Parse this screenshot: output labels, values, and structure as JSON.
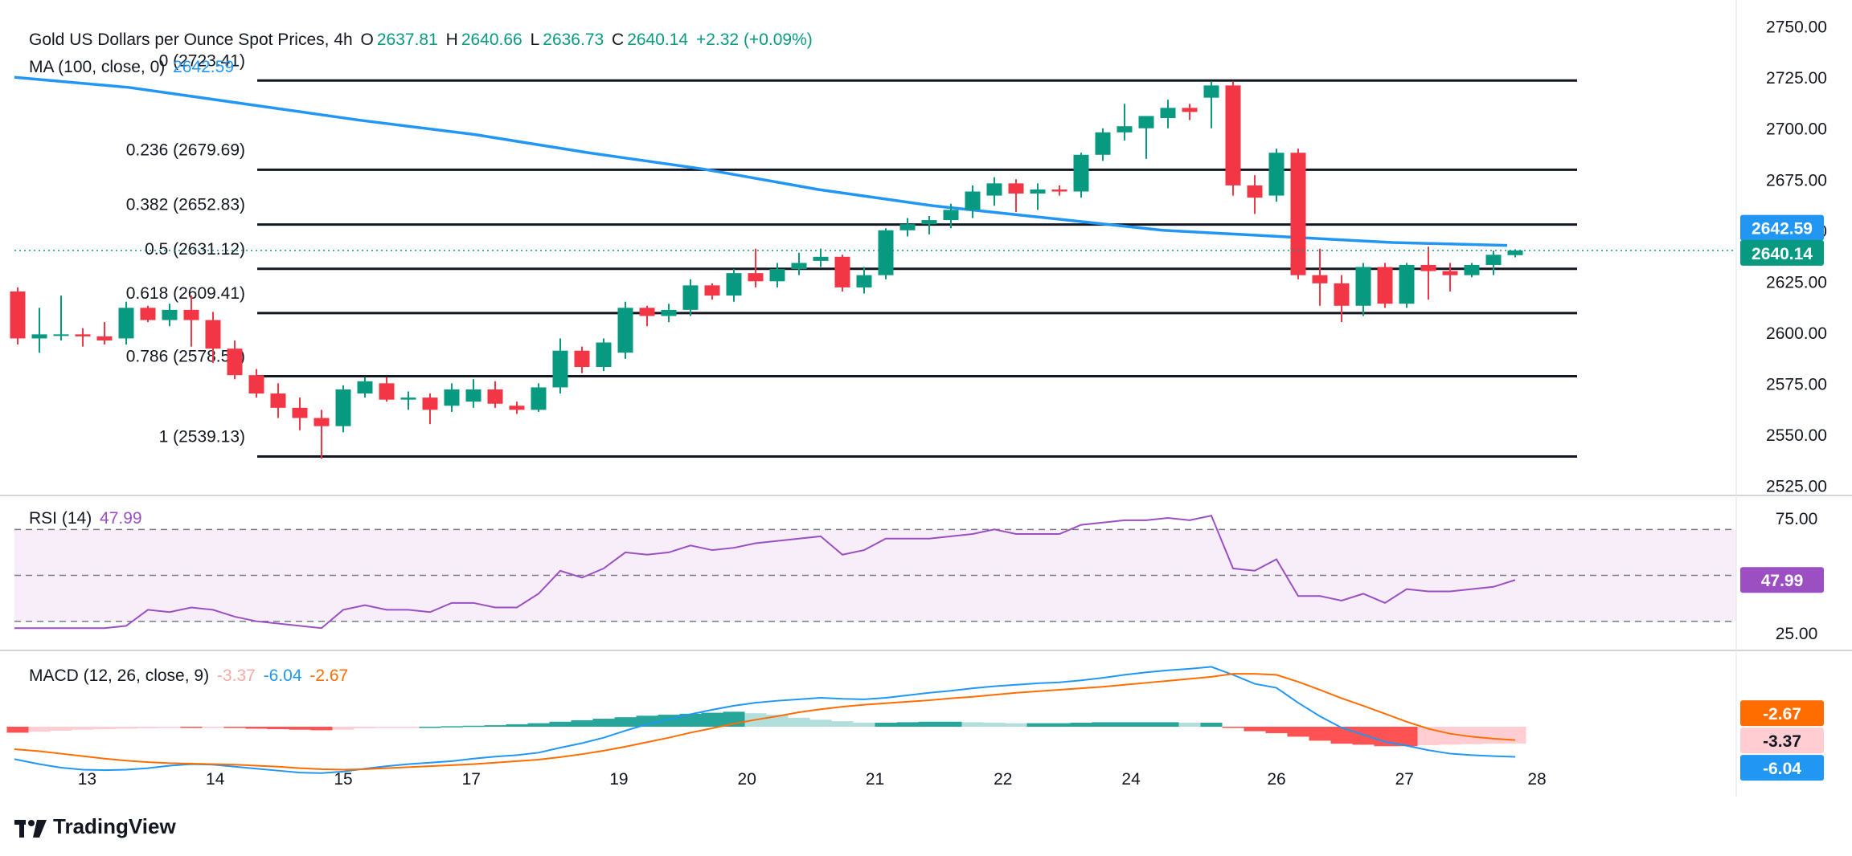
{
  "header": {
    "symbol": "Gold US Dollars per Ounce Spot Prices, 4h",
    "open_label": "O",
    "open": "2637.81",
    "high_label": "H",
    "high": "2640.66",
    "low_label": "L",
    "low": "2636.73",
    "close_label": "C",
    "close": "2640.14",
    "change": "+2.32 (+0.09%)"
  },
  "ma_legend": {
    "label": "MA (100, close, 0)",
    "value": "2642.59"
  },
  "rsi_legend": {
    "label": "RSI (14)",
    "value": "47.99"
  },
  "macd_legend": {
    "label": "MACD (12, 26, close, 9)",
    "hist": "-3.37",
    "macd": "-6.04",
    "signal": "-2.67"
  },
  "branding": {
    "name": "TradingView"
  },
  "colors": {
    "up": "#26a69a",
    "up_dark": "#089981",
    "down": "#f23645",
    "ma": "#2196f3",
    "rsi": "#9c4fc2",
    "macd": "#2196f3",
    "signal": "#ff6d00",
    "fib": "#131722"
  },
  "chart_data": [
    {
      "type": "candlestick",
      "title": "Gold US Dollars per Ounce Spot Prices, 4h",
      "x_tick_labels": [
        "13",
        "14",
        "15",
        "17",
        "19",
        "20",
        "21",
        "22",
        "24",
        "26",
        "27",
        "28"
      ],
      "price_axis_ticks": [
        2525,
        2550,
        2575,
        2600,
        2625,
        2650,
        2675,
        2700,
        2725,
        2750
      ],
      "ylim": [
        2522,
        2755
      ],
      "last_price": 2640.14,
      "ma_last": 2642.59,
      "fibonacci": [
        {
          "ratio": "0",
          "price": 2723.41,
          "label": "0 (2723.41)"
        },
        {
          "ratio": "0.236",
          "price": 2679.69,
          "label": "0.236 (2679.69)"
        },
        {
          "ratio": "0.382",
          "price": 2652.83,
          "label": "0.382 (2652.83)"
        },
        {
          "ratio": "0.5",
          "price": 2631.12,
          "label": "0.5 (2631.12)"
        },
        {
          "ratio": "0.618",
          "price": 2609.41,
          "label": "0.618 (2609.41)"
        },
        {
          "ratio": "0.786",
          "price": 2578.5,
          "label": "0.786 (2578.50)"
        },
        {
          "ratio": "1",
          "price": 2539.13,
          "label": "1 (2539.13)"
        }
      ],
      "candles": [
        [
          2620,
          2622,
          2594,
          2597
        ],
        [
          2597,
          2612,
          2590,
          2599
        ],
        [
          2599,
          2618,
          2596,
          2599
        ],
        [
          2599,
          2602,
          2593,
          2598
        ],
        [
          2598,
          2605,
          2594,
          2596
        ],
        [
          2597,
          2615,
          2594,
          2612
        ],
        [
          2612,
          2613,
          2605,
          2606
        ],
        [
          2606,
          2614,
          2603,
          2611
        ],
        [
          2611,
          2618,
          2593,
          2606
        ],
        [
          2606,
          2610,
          2585,
          2592
        ],
        [
          2592,
          2596,
          2577,
          2579
        ],
        [
          2579,
          2582,
          2568,
          2570
        ],
        [
          2570,
          2575,
          2558,
          2563
        ],
        [
          2563,
          2568,
          2552,
          2558
        ],
        [
          2558,
          2562,
          2538,
          2554
        ],
        [
          2554,
          2574,
          2551,
          2572
        ],
        [
          2570,
          2578,
          2568,
          2576
        ],
        [
          2575,
          2578,
          2566,
          2567
        ],
        [
          2567,
          2571,
          2562,
          2568
        ],
        [
          2568,
          2570,
          2555,
          2562
        ],
        [
          2564,
          2575,
          2561,
          2572
        ],
        [
          2566,
          2577,
          2563,
          2572
        ],
        [
          2572,
          2576,
          2563,
          2565
        ],
        [
          2564,
          2566,
          2560,
          2562
        ],
        [
          2562,
          2575,
          2561,
          2573
        ],
        [
          2573,
          2597,
          2570,
          2591
        ],
        [
          2591,
          2593,
          2580,
          2583
        ],
        [
          2583,
          2597,
          2581,
          2595
        ],
        [
          2590,
          2615,
          2587,
          2612
        ],
        [
          2612,
          2613,
          2603,
          2608
        ],
        [
          2608,
          2614,
          2605,
          2611
        ],
        [
          2611,
          2626,
          2608,
          2623
        ],
        [
          2623,
          2624,
          2616,
          2618
        ],
        [
          2618,
          2631,
          2615,
          2629
        ],
        [
          2629,
          2641,
          2622,
          2625
        ],
        [
          2625,
          2634,
          2622,
          2631
        ],
        [
          2631,
          2639,
          2628,
          2634
        ],
        [
          2635,
          2641,
          2632,
          2637
        ],
        [
          2637,
          2638,
          2620,
          2622
        ],
        [
          2622,
          2632,
          2619,
          2628
        ],
        [
          2628,
          2651,
          2626,
          2650
        ],
        [
          2650,
          2656,
          2647,
          2653
        ],
        [
          2653,
          2657,
          2648,
          2655
        ],
        [
          2655,
          2663,
          2651,
          2660
        ],
        [
          2660,
          2672,
          2656,
          2669
        ],
        [
          2667,
          2676,
          2662,
          2673
        ],
        [
          2673,
          2675,
          2659,
          2668
        ],
        [
          2668,
          2673,
          2660,
          2670
        ],
        [
          2670,
          2672,
          2667,
          2669
        ],
        [
          2669,
          2688,
          2666,
          2687
        ],
        [
          2687,
          2700,
          2684,
          2698
        ],
        [
          2698,
          2712,
          2694,
          2701
        ],
        [
          2700,
          2706,
          2685,
          2706
        ],
        [
          2705,
          2714,
          2700,
          2710
        ],
        [
          2710,
          2712,
          2704,
          2708
        ],
        [
          2715,
          2723,
          2700,
          2721
        ],
        [
          2721,
          2723,
          2667,
          2672
        ],
        [
          2672,
          2677,
          2658,
          2666
        ],
        [
          2667,
          2690,
          2664,
          2688
        ],
        [
          2688,
          2690,
          2626,
          2628
        ],
        [
          2628,
          2641,
          2613,
          2624
        ],
        [
          2624,
          2628,
          2605,
          2613
        ],
        [
          2613,
          2634,
          2608,
          2632
        ],
        [
          2632,
          2634,
          2612,
          2614
        ],
        [
          2614,
          2634,
          2612,
          2633
        ],
        [
          2633,
          2642,
          2616,
          2630
        ],
        [
          2630,
          2634,
          2620,
          2628
        ],
        [
          2628,
          2634,
          2627,
          2633
        ],
        [
          2633,
          2640,
          2628,
          2638
        ],
        [
          2637.81,
          2640.66,
          2636.73,
          2640.14
        ]
      ],
      "moving_average": [
        2725,
        2720,
        2712,
        2704,
        2697,
        2688,
        2680,
        2670,
        2662,
        2656,
        2650,
        2647,
        2644,
        2642.59
      ]
    },
    {
      "type": "line",
      "name": "RSI (14)",
      "ylim": [
        18,
        82
      ],
      "reference_lines": [
        70,
        50,
        30
      ],
      "y_ticks": [
        25,
        75
      ],
      "values": [
        27,
        27,
        27,
        27,
        27,
        28,
        35,
        34,
        36,
        35,
        32,
        30,
        29,
        28,
        27,
        35,
        37,
        35,
        35,
        34,
        38,
        38,
        36,
        36,
        42,
        52,
        49,
        53,
        60,
        59,
        60,
        63,
        61,
        62,
        64,
        65,
        66,
        67,
        59,
        61,
        66,
        66,
        66,
        67,
        68,
        70,
        68,
        68,
        68,
        72,
        73,
        74,
        74,
        75,
        74,
        76,
        53,
        52,
        57,
        41,
        41,
        39,
        42,
        38,
        44,
        43,
        43,
        44,
        45,
        47.99
      ]
    },
    {
      "type": "bar+line",
      "name": "MACD (12, 26, close, 9)",
      "ylim": [
        -14,
        14
      ],
      "histogram": [
        -1.2,
        -1.0,
        -0.8,
        -0.6,
        -0.5,
        -0.4,
        -0.3,
        -0.2,
        -0.2,
        -0.1,
        -0.2,
        -0.4,
        -0.5,
        -0.6,
        -0.7,
        -0.6,
        -0.3,
        -0.2,
        -0.1,
        0.0,
        0.1,
        0.2,
        0.3,
        0.5,
        0.7,
        1.0,
        1.3,
        1.6,
        1.9,
        2.2,
        2.4,
        2.6,
        2.8,
        3.0,
        2.7,
        2.4,
        1.8,
        1.4,
        1.1,
        0.8,
        0.8,
        0.9,
        1.0,
        1.0,
        0.9,
        0.8,
        0.7,
        0.7,
        0.7,
        0.8,
        0.9,
        0.9,
        0.9,
        0.9,
        0.8,
        0.8,
        -0.2,
        -0.9,
        -1.3,
        -2.0,
        -2.8,
        -3.4,
        -3.6,
        -3.9,
        -3.9,
        -3.7,
        -3.6,
        -3.5,
        -3.4,
        -3.37
      ],
      "macd": [
        -6.5,
        -7.5,
        -8.2,
        -8.6,
        -8.7,
        -8.6,
        -8.3,
        -7.8,
        -7.5,
        -7.6,
        -8.0,
        -8.4,
        -8.8,
        -9.2,
        -9.3,
        -9.0,
        -8.4,
        -7.9,
        -7.5,
        -7.2,
        -6.9,
        -6.4,
        -6.0,
        -5.7,
        -5.2,
        -4.2,
        -3.3,
        -2.2,
        -0.8,
        0.5,
        1.5,
        2.5,
        3.4,
        4.2,
        4.8,
        5.2,
        5.5,
        5.8,
        5.6,
        5.5,
        5.8,
        6.3,
        6.8,
        7.2,
        7.7,
        8.1,
        8.4,
        8.7,
        8.9,
        9.3,
        9.8,
        10.4,
        10.9,
        11.3,
        11.6,
        12.0,
        10.4,
        8.6,
        7.8,
        4.8,
        2.1,
        -0.2,
        -1.6,
        -3.0,
        -3.8,
        -4.7,
        -5.4,
        -5.7,
        -5.9,
        -6.04
      ],
      "signal": [
        -4.5,
        -4.9,
        -5.4,
        -5.9,
        -6.4,
        -6.8,
        -7.1,
        -7.3,
        -7.4,
        -7.5,
        -7.6,
        -7.8,
        -8.0,
        -8.3,
        -8.5,
        -8.6,
        -8.5,
        -8.3,
        -8.1,
        -7.9,
        -7.7,
        -7.5,
        -7.2,
        -6.9,
        -6.6,
        -6.1,
        -5.5,
        -4.8,
        -4.0,
        -3.1,
        -2.2,
        -1.2,
        -0.3,
        0.6,
        1.4,
        2.1,
        2.9,
        3.5,
        4.0,
        4.4,
        4.7,
        5.0,
        5.3,
        5.7,
        6.0,
        6.4,
        6.8,
        7.1,
        7.4,
        7.7,
        8.0,
        8.4,
        8.8,
        9.2,
        9.6,
        10.0,
        10.6,
        10.6,
        10.4,
        9.0,
        7.4,
        5.7,
        4.2,
        2.6,
        1.0,
        -0.4,
        -1.4,
        -2.0,
        -2.4,
        -2.67
      ],
      "axis_labels": [
        "-2.67",
        "-3.37",
        "-6.04"
      ]
    }
  ]
}
